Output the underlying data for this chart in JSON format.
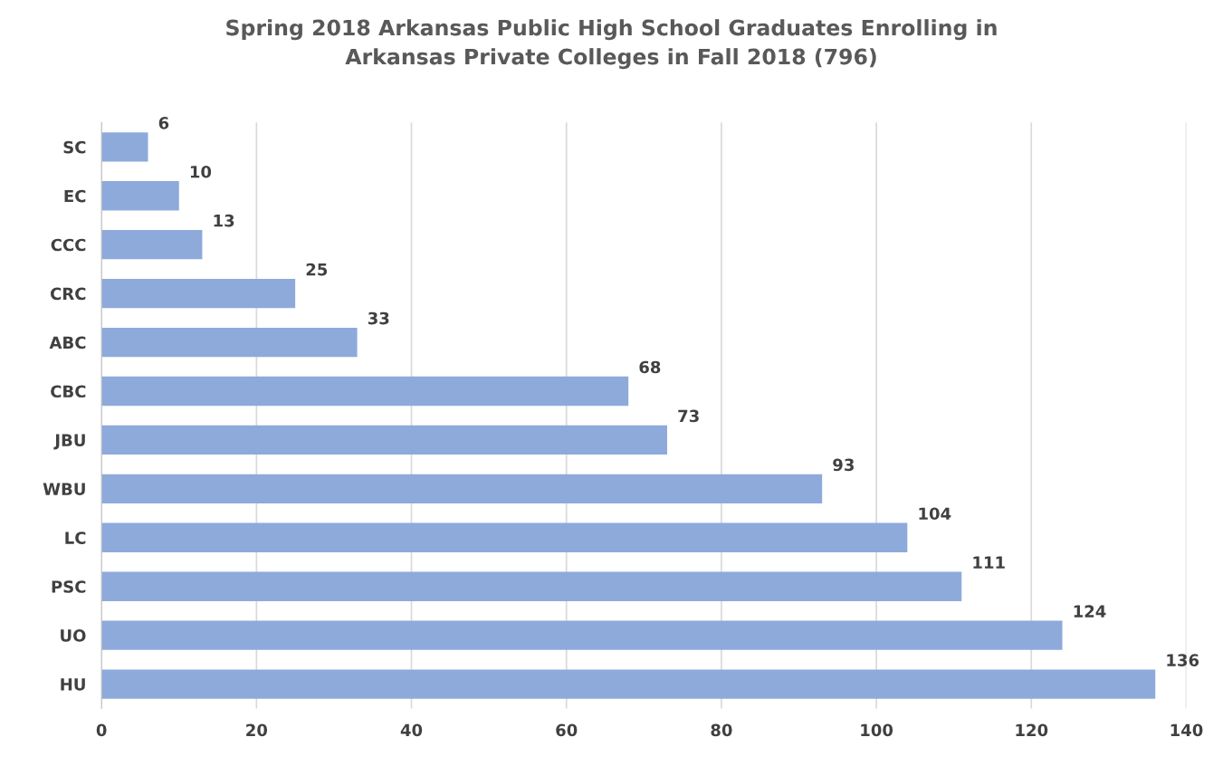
{
  "chart_data": {
    "type": "bar",
    "orientation": "horizontal",
    "title": "Spring 2018 Arkansas Public High School Graduates Enrolling in\nArkansas Private Colleges in Fall 2018 (796)",
    "categories": [
      "SC",
      "EC",
      "CCC",
      "CRC",
      "ABC",
      "CBC",
      "JBU",
      "WBU",
      "LC",
      "PSC",
      "UO",
      "HU"
    ],
    "values": [
      6,
      10,
      13,
      25,
      33,
      68,
      73,
      93,
      104,
      111,
      124,
      136
    ],
    "color": "#8eaadb",
    "xlim": [
      0,
      140
    ],
    "xticks": [
      0,
      20,
      40,
      60,
      80,
      100,
      120,
      140
    ],
    "grid": "x",
    "data_labels": true
  }
}
